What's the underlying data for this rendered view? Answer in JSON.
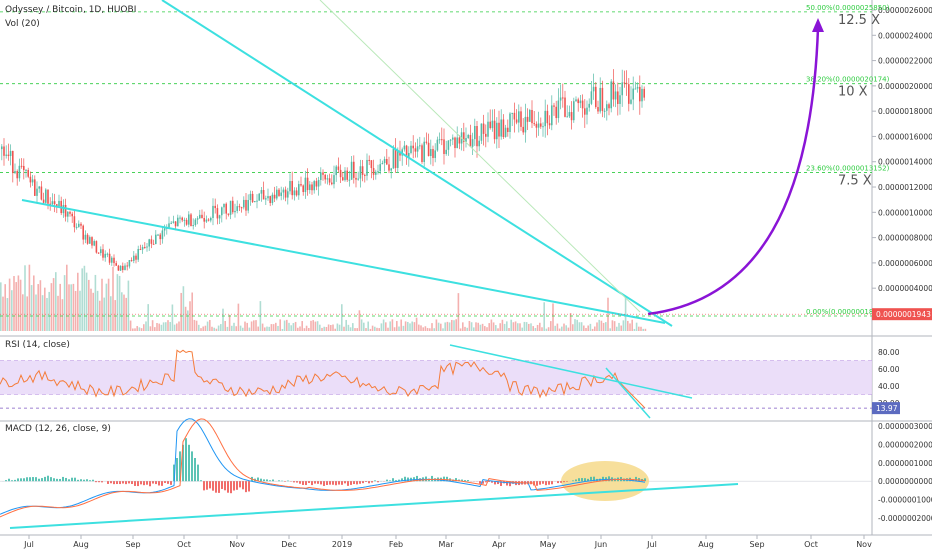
{
  "header": {
    "symbol_line": "Odyssey / Bitcoin, 1D, HUOBI",
    "vol_line": "Vol (20)",
    "rsi_line": "RSI (14, close)",
    "macd_line": "MACD (12, 26, close, 9)"
  },
  "chart_data": [
    {
      "type": "candlestick",
      "x_ticks": [
        "Jul",
        "Aug",
        "Sep",
        "Oct",
        "Nov",
        "Dec",
        "2019",
        "Feb",
        "Mar",
        "Apr",
        "May",
        "Jun",
        "Jul",
        "Aug",
        "Sep",
        "Oct",
        "Nov"
      ],
      "y_ticks": [
        "0.0000026000",
        "0.0000024000",
        "0.0000022000",
        "0.0000020000",
        "0.0000018000",
        "0.0000016000",
        "0.0000014000",
        "0.0000012000",
        "0.0000010000",
        "0.0000008000",
        "0.0000006000",
        "0.0000004000",
        "0.0000002000"
      ],
      "ylim": [
        1e-07,
        2.6e-06
      ],
      "last_price": "0.0000001943",
      "fib_levels": [
        {
          "label": "50.00%(0.0000025850)",
          "value": 2.585e-06,
          "multiple": "12.5 X"
        },
        {
          "label": "38.20%(0.0000020174)",
          "value": 2.0174e-06,
          "multiple": "10 X"
        },
        {
          "label": "23.60%(0.0000013152)",
          "value": 1.3152e-06,
          "multiple": "7.5 X"
        },
        {
          "label": "0.00%(0.0000001800)",
          "value": 1.8e-07,
          "multiple": ""
        }
      ],
      "close_path": [
        [
          "Jul",
          1.5e-06
        ],
        [
          "Jul",
          1.2e-06
        ],
        [
          "Aug",
          1e-06
        ],
        [
          "Aug",
          7e-07
        ],
        [
          "Sep",
          5.5e-07
        ],
        [
          "Sep",
          9e-07
        ],
        [
          "Oct",
          2.4e-06
        ],
        [
          "Oct",
          1.8e-06
        ],
        [
          "Nov",
          1.6e-06
        ],
        [
          "Nov",
          1.2e-06
        ],
        [
          "Dec",
          8e-07
        ],
        [
          "Dec",
          8.5e-07
        ],
        [
          "2019",
          9e-07
        ],
        [
          "Feb",
          7e-07
        ],
        [
          "Mar",
          6e-07
        ],
        [
          "Mar",
          7e-07
        ],
        [
          "Apr",
          9e-07
        ],
        [
          "Apr",
          6e-07
        ],
        [
          "May",
          3e-07
        ],
        [
          "Jun",
          3e-07
        ],
        [
          "Jun",
          2e-07
        ]
      ]
    },
    {
      "type": "line",
      "name": "RSI",
      "y_ticks": [
        "80.00",
        "60.00",
        "40.00",
        "20.00"
      ],
      "last_value": "13.97",
      "band": [
        30,
        70
      ]
    },
    {
      "type": "line",
      "name": "MACD",
      "y_ticks": [
        "0.0000003000",
        "0.0000002000",
        "0.0000001000",
        "0.0000000000",
        "-0.0000001000",
        "-0.0000002000"
      ]
    }
  ],
  "colors": {
    "up": "#53b9a5",
    "down": "#ef5350",
    "trend": "#3de0e0",
    "projection": "#8a14d6",
    "fib": "#2ecc40",
    "rsi_band": "#e6d6f7",
    "macd_highlight": "#f6d98a"
  }
}
